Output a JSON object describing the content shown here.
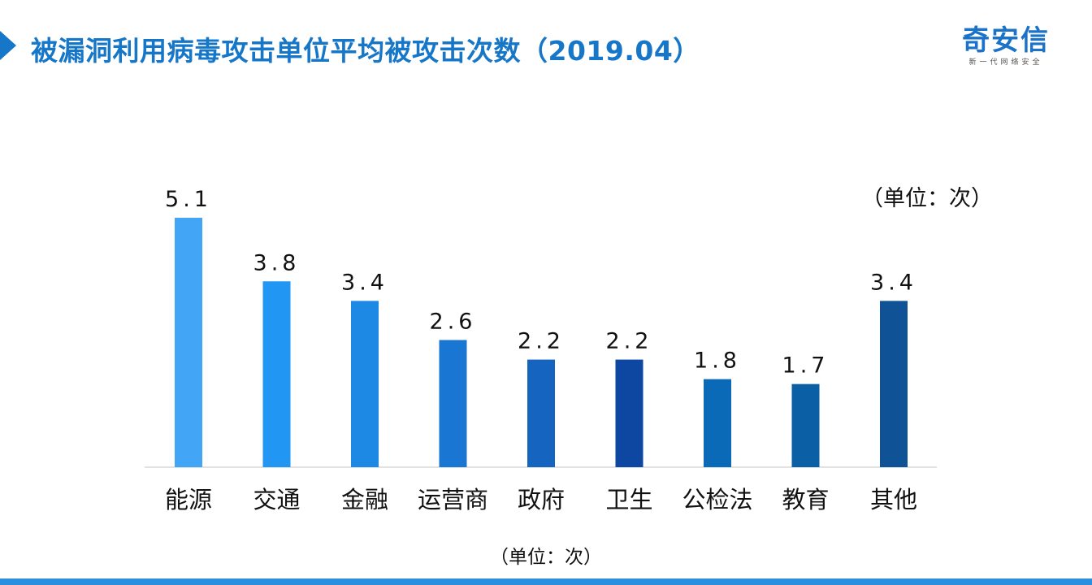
{
  "title": "被漏洞利用病毒攻击单位平均被攻击次数（2019.04）",
  "logo": {
    "name": "奇安信",
    "tagline": "新一代网络安全"
  },
  "unit_label_top": "（单位：次）",
  "unit_label_bottom": "（单位：次）",
  "colors": {
    "title": "#1677c8",
    "axis": "#d9d9d9",
    "bottom_bar": "#2b8fe0"
  },
  "chart_data": {
    "type": "bar",
    "categories": [
      "能源",
      "交通",
      "金融",
      "运营商",
      "政府",
      "卫生",
      "公检法",
      "教育",
      "其他"
    ],
    "values": [
      5.1,
      3.8,
      3.4,
      2.6,
      2.2,
      2.2,
      1.8,
      1.7,
      3.4
    ],
    "value_labels": [
      "5.1",
      "3.8",
      "3.4",
      "2.6",
      "2.2",
      "2.2",
      "1.8",
      "1.7",
      "3.4"
    ],
    "bar_colors": [
      "#42a5f5",
      "#2196f3",
      "#1e88e5",
      "#1976d2",
      "#1565c0",
      "#0d47a1",
      "#0a6ab8",
      "#0b5fa5",
      "#0f5296"
    ],
    "ylim": [
      0,
      5.1
    ],
    "grid": false,
    "legend": "none",
    "unit": "（单位：次）"
  }
}
